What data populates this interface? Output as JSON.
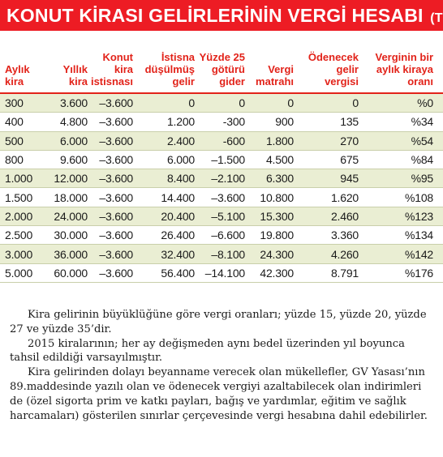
{
  "title": {
    "main": "KONUT KİRASI GELİRLERİNİN VERGİ HESABI",
    "unit": "(TL)"
  },
  "table": {
    "headers": [
      "Aylık\nkira",
      "Yıllık\nkira",
      "Konut\nkira\nistisnası",
      "İstisna\ndüşülmüş\ngelir",
      "Yüzde 25\ngötürü\ngider",
      "Vergi\nmatrahı",
      "Ödenecek\ngelir\nvergisi",
      "Verginin bir\naylık kiraya\noranı"
    ],
    "rows": [
      [
        "300",
        "3.600",
        "–3.600",
        "0",
        "0",
        "0",
        "0",
        "%0"
      ],
      [
        "400",
        "4.800",
        "–3.600",
        "1.200",
        "-300",
        "900",
        "135",
        "%34"
      ],
      [
        "500",
        "6.000",
        "–3.600",
        "2.400",
        "-600",
        "1.800",
        "270",
        "%54"
      ],
      [
        "800",
        "9.600",
        "–3.600",
        "6.000",
        "–1.500",
        "4.500",
        "675",
        "%84"
      ],
      [
        "1.000",
        "12.000",
        "–3.600",
        "8.400",
        "–2.100",
        "6.300",
        "945",
        "%95"
      ],
      [
        "1.500",
        "18.000",
        "–3.600",
        "14.400",
        "–3.600",
        "10.800",
        "1.620",
        "%108"
      ],
      [
        "2.000",
        "24.000",
        "–3.600",
        "20.400",
        "–5.100",
        "15.300",
        "2.460",
        "%123"
      ],
      [
        "2.500",
        "30.000",
        "–3.600",
        "26.400",
        "–6.600",
        "19.800",
        "3.360",
        "%134"
      ],
      [
        "3.000",
        "36.000",
        "–3.600",
        "32.400",
        "–8.100",
        "24.300",
        "4.260",
        "%142"
      ],
      [
        "5.000",
        "60.000",
        "–3.600",
        "56.400",
        "–14.100",
        "42.300",
        "8.791",
        "%176"
      ]
    ]
  },
  "notes": [
    "Kira gelirinin büyüklüğüne göre vergi oranları; yüzde 15, yüzde 20, yüzde 27 ve yüzde 35’dir.",
    "2015 kiralarının; her ay değişmeden aynı bedel üzerinden yıl boyunca tahsil edildiği varsayılmıştır.",
    "Kira gelirinden dolayı beyanname verecek olan mükellefler, GV Yasası’nın 89.maddesinde yazılı olan ve ödenecek vergiyi azaltabilecek olan indirimleri de (özel sigorta prim ve katkı payları, bağış ve yardımlar, eğitim ve sağlık harcamaları) gösterilen sınırlar çerçevesinde vergi hesabına dahil edebilirler."
  ]
}
